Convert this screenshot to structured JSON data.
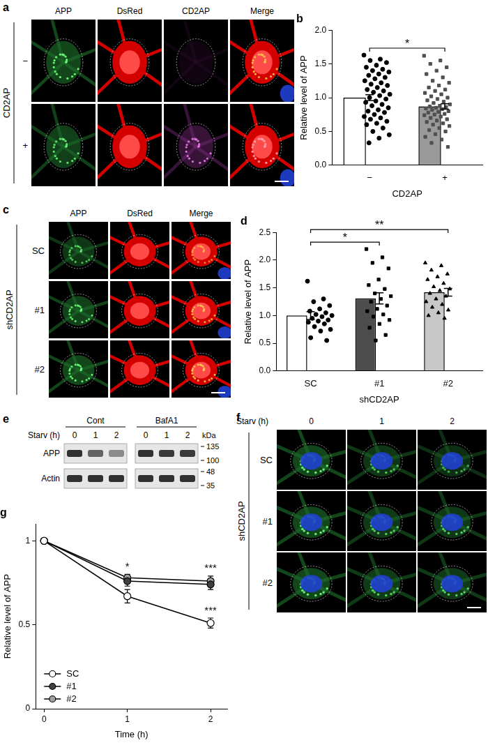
{
  "figure": {
    "a": {
      "label": "a",
      "row_title": "CD2AP",
      "rows": [
        "−",
        "+"
      ],
      "columns": [
        "APP",
        "DsRed",
        "CD2AP",
        "Merge"
      ]
    },
    "c": {
      "label": "c",
      "row_title": "shCD2AP",
      "rows": [
        "SC",
        "#1",
        "#2"
      ],
      "columns": [
        "APP",
        "DsRed",
        "Merge"
      ]
    },
    "e": {
      "label": "e",
      "groups": [
        "Cont",
        "BafA1"
      ],
      "lane_title": "Starv (h)",
      "lanes": [
        0,
        1,
        2
      ],
      "unit": "kDa",
      "blots": [
        {
          "name": "APP",
          "band_intensity": [
            1,
            0.72,
            0.5,
            1,
            0.95,
            0.95
          ],
          "markers": [
            135,
            100
          ]
        },
        {
          "name": "Actin",
          "band_intensity": [
            1,
            1,
            1,
            1,
            1,
            1
          ],
          "markers": [
            48,
            35
          ]
        }
      ]
    },
    "f": {
      "label": "f",
      "column_title": "Starv (h)",
      "columns": [
        0,
        1,
        2
      ],
      "row_title": "shCD2AP",
      "rows": [
        "SC",
        "#1",
        "#2"
      ]
    }
  },
  "chart_data": [
    {
      "type": "bar",
      "title": "b",
      "categories": [
        "−",
        "+"
      ],
      "values": [
        1.0,
        0.87
      ],
      "errors": [
        0.045,
        0.04
      ],
      "colors": [
        "#ffffff",
        "#9a9a9a"
      ],
      "points": [
        {
          "marker": "circle",
          "color": "#000000",
          "values": [
            1.63,
            1.57,
            1.55,
            1.52,
            1.48,
            1.45,
            1.42,
            1.4,
            1.38,
            1.35,
            1.33,
            1.3,
            1.28,
            1.25,
            1.22,
            1.2,
            1.18,
            1.15,
            1.12,
            1.1,
            1.08,
            1.05,
            1.03,
            1.0,
            0.98,
            0.95,
            0.93,
            0.9,
            0.88,
            0.85,
            0.82,
            0.8,
            0.78,
            0.75,
            0.72,
            0.7,
            0.68,
            0.65,
            0.62,
            0.6,
            0.55,
            0.5,
            0.45,
            0.4,
            0.33
          ]
        },
        {
          "marker": "square",
          "color": "#505050",
          "values": [
            1.62,
            1.55,
            1.5,
            1.45,
            1.4,
            1.35,
            1.3,
            1.25,
            1.22,
            1.18,
            1.15,
            1.12,
            1.1,
            1.07,
            1.05,
            1.02,
            1.0,
            0.98,
            0.96,
            0.94,
            0.92,
            0.9,
            0.88,
            0.87,
            0.86,
            0.85,
            0.84,
            0.83,
            0.82,
            0.8,
            0.79,
            0.78,
            0.76,
            0.75,
            0.74,
            0.72,
            0.7,
            0.68,
            0.66,
            0.64,
            0.62,
            0.6,
            0.58,
            0.55,
            0.52,
            0.5,
            0.46,
            0.42,
            0.38,
            0.33,
            0.27
          ]
        }
      ],
      "annotations": [
        {
          "between": [
            "−",
            "+"
          ],
          "text": "*"
        }
      ],
      "xlabel": "CD2AP",
      "ylabel": "Relative level of APP",
      "ylim": [
        0,
        2
      ],
      "yticks": [
        {
          "value": 0,
          "label": "0.0"
        },
        0.5,
        {
          "value": 1,
          "label": "1.0"
        },
        1.5,
        {
          "value": 2,
          "label": "2.0"
        }
      ],
      "grid": false
    },
    {
      "type": "bar",
      "title": "d",
      "categories": [
        "SC",
        "#1",
        "#2"
      ],
      "values": [
        1.0,
        1.31,
        1.42
      ],
      "errors": [
        0.07,
        0.1,
        0.07
      ],
      "colors": [
        "#ffffff",
        "#4d4d4d",
        "#c8c8c8"
      ],
      "points": [
        {
          "marker": "circle",
          "color": "#000000",
          "values": [
            1.62,
            1.3,
            1.25,
            1.18,
            1.12,
            1.08,
            1.05,
            1.02,
            1.0,
            0.98,
            0.95,
            0.92,
            0.9,
            0.88,
            0.85,
            0.8,
            0.75,
            0.72,
            0.6,
            0.55
          ]
        },
        {
          "marker": "square",
          "color": "#000000",
          "values": [
            2.2,
            2.05,
            1.95,
            1.85,
            1.65,
            1.55,
            1.48,
            1.4,
            1.35,
            1.3,
            1.25,
            1.18,
            1.12,
            1.08,
            1.02,
            0.98,
            0.92,
            0.85,
            0.78,
            0.65,
            0.55
          ]
        },
        {
          "marker": "triangle",
          "color": "#000000",
          "values": [
            1.95,
            1.9,
            1.82,
            1.75,
            1.7,
            1.65,
            1.58,
            1.52,
            1.48,
            1.45,
            1.4,
            1.35,
            1.3,
            1.25,
            1.2,
            1.15,
            1.1,
            1.05,
            1.0,
            0.95
          ]
        }
      ],
      "annotations": [
        {
          "between": [
            "SC",
            "#1"
          ],
          "text": "*"
        },
        {
          "between": [
            "SC",
            "#2"
          ],
          "text": "**"
        }
      ],
      "xlabel": "shCD2AP",
      "ylabel": "Relative level of APP",
      "ylim": [
        0,
        2.5
      ],
      "yticks": [
        {
          "value": 0,
          "label": "0.0"
        },
        0.5,
        {
          "value": 1,
          "label": "1.0"
        },
        1.5,
        {
          "value": 2,
          "label": "2.0"
        },
        2.5
      ],
      "grid": false
    },
    {
      "type": "line",
      "title": "g",
      "x": [
        0,
        1,
        2
      ],
      "series": [
        {
          "name": "SC",
          "color": "#ffffff",
          "marker": "circle",
          "values": [
            1,
            0.67,
            0.51
          ],
          "errors": [
            0,
            0.04,
            0.03
          ]
        },
        {
          "name": "#1",
          "color": "#404040",
          "marker": "circle",
          "values": [
            1,
            0.76,
            0.74
          ],
          "errors": [
            0,
            0.03,
            0.03
          ]
        },
        {
          "name": "#2",
          "color": "#a0a0a0",
          "marker": "circle",
          "values": [
            1,
            0.78,
            0.76
          ],
          "errors": [
            0,
            0.02,
            0.03
          ]
        }
      ],
      "annotations": [
        {
          "x": 1,
          "series": "#2",
          "text": "*"
        },
        {
          "x": 2,
          "series": "#2",
          "text": "***"
        },
        {
          "x": 2,
          "series": "SC",
          "text": "***"
        }
      ],
      "xlabel": "Time (h)",
      "ylabel": "Relative level of APP",
      "xlim": [
        -0.1,
        2.2
      ],
      "xticks": [
        0,
        1,
        2
      ],
      "ylim": [
        0,
        1.1
      ],
      "yticks": [
        0,
        0.5,
        1
      ],
      "legend": "lower left",
      "grid": false
    }
  ]
}
